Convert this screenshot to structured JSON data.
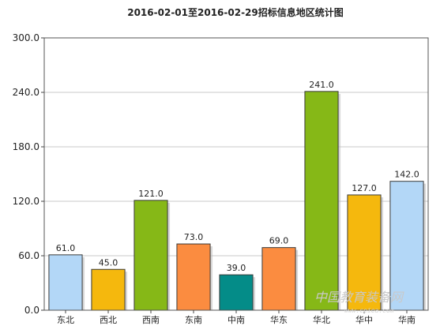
{
  "chart_data": {
    "type": "bar",
    "title": "2016-02-01至2016-02-29招标信息地区统计图",
    "categories": [
      "东北",
      "西北",
      "西南",
      "东南",
      "中南",
      "华东",
      "华北",
      "华中",
      "华南"
    ],
    "values": [
      61,
      45,
      121,
      73,
      39,
      69,
      241,
      127,
      142
    ],
    "value_labels": [
      "61.0",
      "45.0",
      "121.0",
      "73.0",
      "39.0",
      "69.0",
      "241.0",
      "127.0",
      "142.0"
    ],
    "colors": [
      "#b3d7f7",
      "#f5b80d",
      "#86b817",
      "#fb8c40",
      "#048c88",
      "#fb8c40",
      "#86b817",
      "#f5b80d",
      "#b3d7f7"
    ],
    "ylim": [
      0,
      300
    ],
    "yticks": [
      0,
      60,
      120,
      180,
      240,
      300
    ],
    "ytick_labels": [
      "0.0",
      "60.0",
      "120.0",
      "180.0",
      "240.0",
      "300.0"
    ],
    "grid": true,
    "xlabel": "",
    "ylabel": ""
  },
  "watermark": {
    "text": "中国教育装备网",
    "subtext": "www.ceiea.com"
  }
}
